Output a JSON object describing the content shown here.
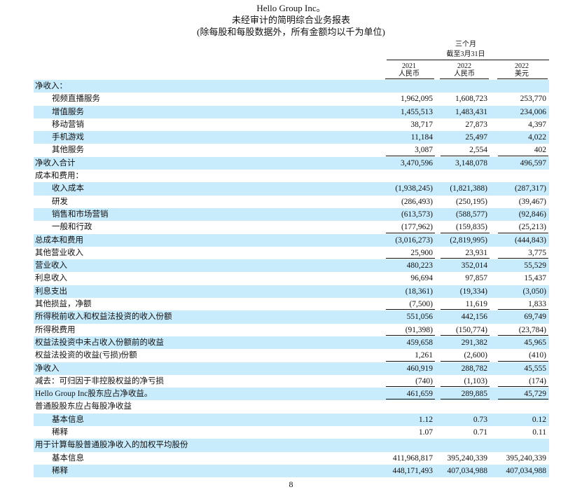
{
  "header": {
    "company": "Hello Group Inc。",
    "title": "未经审计的简明综合业务报表",
    "subtitle": "(除每股和每股数据外，所有金额均以千为单位)"
  },
  "column_headers": {
    "period": "三个月",
    "period_end": "截至3月31日",
    "columns": [
      {
        "year": "2021",
        "currency": "人民币"
      },
      {
        "year": "2022",
        "currency": "人民币"
      },
      {
        "year": "2022",
        "currency": "美元"
      }
    ]
  },
  "rows": [
    {
      "label": "净收入：",
      "values": [
        "",
        "",
        ""
      ],
      "indent": false,
      "highlight": true,
      "underline": false
    },
    {
      "label": "视频直播服务",
      "values": [
        "1,962,095",
        "1,608,723",
        "253,770"
      ],
      "indent": true,
      "highlight": false,
      "underline": false
    },
    {
      "label": "增值服务",
      "values": [
        "1,455,513",
        "1,483,431",
        "234,006"
      ],
      "indent": true,
      "highlight": true,
      "underline": false
    },
    {
      "label": "移动营销",
      "values": [
        "38,717",
        "27,873",
        "4,397"
      ],
      "indent": true,
      "highlight": false,
      "underline": false
    },
    {
      "label": "手机游戏",
      "values": [
        "11,184",
        "25,497",
        "4,022"
      ],
      "indent": true,
      "highlight": true,
      "underline": false
    },
    {
      "label": "其他服务",
      "values": [
        "3,087",
        "2,554",
        "402"
      ],
      "indent": true,
      "highlight": false,
      "underline": true
    },
    {
      "label": "净收入合计",
      "values": [
        "3,470,596",
        "3,148,078",
        "496,597"
      ],
      "indent": false,
      "highlight": true,
      "underline": false
    },
    {
      "label": "成本和费用：",
      "values": [
        "",
        "",
        ""
      ],
      "indent": false,
      "highlight": false,
      "underline": false
    },
    {
      "label": "收入成本",
      "values": [
        "(1,938,245)",
        "(1,821,388)",
        "(287,317)"
      ],
      "indent": true,
      "highlight": true,
      "underline": false
    },
    {
      "label": "研发",
      "values": [
        "(286,493)",
        "(250,195)",
        "(39,467)"
      ],
      "indent": true,
      "highlight": false,
      "underline": false
    },
    {
      "label": "销售和市场营销",
      "values": [
        "(613,573)",
        "(588,577)",
        "(92,846)"
      ],
      "indent": true,
      "highlight": true,
      "underline": false
    },
    {
      "label": "一般和行政",
      "values": [
        "(177,962)",
        "(159,835)",
        "(25,213)"
      ],
      "indent": true,
      "highlight": false,
      "underline": true
    },
    {
      "label": "总成本和费用",
      "values": [
        "(3,016,273)",
        "(2,819,995)",
        "(444,843)"
      ],
      "indent": false,
      "highlight": true,
      "underline": false
    },
    {
      "label": "其他营业收入",
      "values": [
        "25,900",
        "23,931",
        "3,775"
      ],
      "indent": false,
      "highlight": false,
      "underline": true
    },
    {
      "label": "营业收入",
      "values": [
        "480,223",
        "352,014",
        "55,529"
      ],
      "indent": false,
      "highlight": true,
      "underline": false
    },
    {
      "label": "利息收入",
      "values": [
        "96,694",
        "97,857",
        "15,437"
      ],
      "indent": false,
      "highlight": false,
      "underline": false
    },
    {
      "label": "利息支出",
      "values": [
        "(18,361)",
        "(19,334)",
        "(3,050)"
      ],
      "indent": false,
      "highlight": true,
      "underline": false
    },
    {
      "label": "其他损益，净额",
      "values": [
        "(7,500)",
        "11,619",
        "1,833"
      ],
      "indent": false,
      "highlight": false,
      "underline": true
    },
    {
      "label": "所得税前收入和权益法投资的收入份额",
      "values": [
        "551,056",
        "442,156",
        "69,749"
      ],
      "indent": false,
      "highlight": true,
      "underline": false
    },
    {
      "label": "所得税费用",
      "values": [
        "(91,398)",
        "(150,774)",
        "(23,784)"
      ],
      "indent": false,
      "highlight": false,
      "underline": true
    },
    {
      "label": "权益法投资中未占收入份额前的收益",
      "values": [
        "459,658",
        "291,382",
        "45,965"
      ],
      "indent": false,
      "highlight": true,
      "underline": false
    },
    {
      "label": "权益法投资的收益(亏损)份额",
      "values": [
        "1,261",
        "(2,600)",
        "(410)"
      ],
      "indent": false,
      "highlight": false,
      "underline": true
    },
    {
      "label": "净收入",
      "values": [
        "460,919",
        "288,782",
        "45,555"
      ],
      "indent": false,
      "highlight": true,
      "underline": false
    },
    {
      "label": "减去：可归因于非控股权益的净亏损",
      "values": [
        "(740)",
        "(1,103)",
        "(174)"
      ],
      "indent": false,
      "highlight": false,
      "underline": true
    },
    {
      "label": "Hello Group Inc股东应占净收益。",
      "values": [
        "461,659",
        "289,885",
        "45,729"
      ],
      "indent": false,
      "highlight": true,
      "underline": true
    },
    {
      "label": "普通股股东应占每股净收益",
      "values": [
        "",
        "",
        ""
      ],
      "indent": false,
      "highlight": false,
      "underline": false
    },
    {
      "label": "基本信息",
      "values": [
        "1.12",
        "0.73",
        "0.12"
      ],
      "indent": true,
      "highlight": true,
      "underline": false
    },
    {
      "label": "稀释",
      "values": [
        "1.07",
        "0.71",
        "0.11"
      ],
      "indent": true,
      "highlight": false,
      "underline": false
    },
    {
      "label": "用于计算每股普通股净收入的加权平均股份",
      "values": [
        "",
        "",
        ""
      ],
      "indent": false,
      "highlight": true,
      "underline": false
    },
    {
      "label": "基本信息",
      "values": [
        "411,968,817",
        "395,240,339",
        "395,240,339"
      ],
      "indent": true,
      "highlight": false,
      "underline": false
    },
    {
      "label": "稀释",
      "values": [
        "448,171,493",
        "407,034,988",
        "407,034,988"
      ],
      "indent": true,
      "highlight": true,
      "underline": false
    }
  ],
  "footer": {
    "page_number": "8"
  }
}
